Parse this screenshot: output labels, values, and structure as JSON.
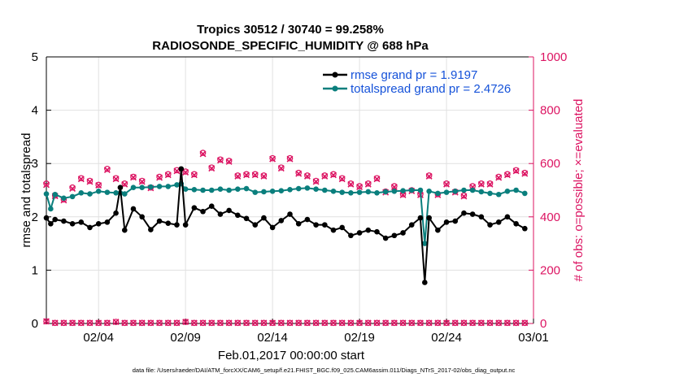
{
  "chart_data": {
    "type": "line",
    "title": "Tropics 30512 / 30740 = 99.258%",
    "subtitle": "RADIOSONDE_SPECIFIC_HUMIDITY @ 688 hPa",
    "xlabel": "Feb.01,2017 00:00:00 start",
    "ylabel_left": "rmse and totalspread",
    "ylabel_right": "# of obs: o=possible; ×=evaluated",
    "footnote": "data file: /Users/raeder/DAI/ATM_forcXX/CAM6_setup/f.e21.FHIST_BGC.f09_025.CAM6assim.011/Diags_NTrS_2017-02/obs_diag_output.nc",
    "x_start_day": 0,
    "xlim": [
      0,
      28
    ],
    "xticks": [
      3,
      8,
      13,
      18,
      23,
      28
    ],
    "xtick_labels": [
      "02/04",
      "02/09",
      "02/14",
      "02/19",
      "02/24",
      "03/01"
    ],
    "ylim_left": [
      0,
      5
    ],
    "yticks_left": [
      "0",
      "1",
      "2",
      "3",
      "4",
      "5"
    ],
    "ylim_right": [
      0,
      1000
    ],
    "yticks_right": [
      "0",
      "200",
      "400",
      "600",
      "800",
      "1000"
    ],
    "colors": {
      "rmse": "#000000",
      "spread": "#0a7f7d",
      "obs": "#dc1462",
      "legend_text": "#1552d9",
      "axis": "#000000"
    },
    "series": [
      {
        "name": "rmse grand pr = 1.9197",
        "axis": "left",
        "x": [
          0,
          0.25,
          0.5,
          1,
          1.5,
          2,
          2.5,
          3,
          3.5,
          4,
          4.25,
          4.5,
          5,
          5.5,
          6,
          6.5,
          7,
          7.5,
          7.75,
          8,
          8.5,
          9,
          9.5,
          10,
          10.5,
          11,
          11.5,
          12,
          12.5,
          13,
          13.5,
          14,
          14.5,
          15,
          15.5,
          16,
          16.5,
          17,
          17.5,
          18,
          18.5,
          19,
          19.5,
          20,
          20.5,
          21,
          21.5,
          21.75,
          22,
          22.5,
          23,
          23.5,
          24,
          24.5,
          25,
          25.5,
          26,
          26.5,
          27,
          27.5
        ],
        "values": [
          1.98,
          1.87,
          1.95,
          1.92,
          1.87,
          1.9,
          1.8,
          1.87,
          1.9,
          2.07,
          2.55,
          1.75,
          2.15,
          2.0,
          1.76,
          1.92,
          1.88,
          1.85,
          2.9,
          1.85,
          2.17,
          2.1,
          2.2,
          2.05,
          2.12,
          2.03,
          1.97,
          1.85,
          1.98,
          1.8,
          1.93,
          2.05,
          1.87,
          1.95,
          1.85,
          1.85,
          1.75,
          1.8,
          1.65,
          1.7,
          1.75,
          1.72,
          1.6,
          1.65,
          1.7,
          1.85,
          1.98,
          0.77,
          1.98,
          1.75,
          1.9,
          1.92,
          2.07,
          2.05,
          2.0,
          1.85,
          1.9,
          2.0,
          1.87,
          1.78
        ]
      },
      {
        "name": "totalspread grand pr = 2.4726",
        "axis": "left",
        "x": [
          0,
          0.25,
          0.5,
          1,
          1.5,
          2,
          2.5,
          3,
          3.5,
          4,
          4.25,
          4.5,
          5,
          5.5,
          6,
          6.5,
          7,
          7.5,
          7.75,
          8,
          8.5,
          9,
          9.5,
          10,
          10.5,
          11,
          11.5,
          12,
          12.5,
          13,
          13.5,
          14,
          14.5,
          15,
          15.5,
          16,
          16.5,
          17,
          17.5,
          18,
          18.5,
          19,
          19.5,
          20,
          20.5,
          21,
          21.5,
          21.75,
          22,
          22.5,
          23,
          23.5,
          24,
          24.5,
          25,
          25.5,
          26,
          26.5,
          27,
          27.5
        ],
        "values": [
          2.43,
          2.15,
          2.42,
          2.35,
          2.38,
          2.45,
          2.43,
          2.48,
          2.46,
          2.45,
          2.45,
          2.43,
          2.55,
          2.55,
          2.56,
          2.57,
          2.57,
          2.6,
          2.62,
          2.52,
          2.51,
          2.5,
          2.5,
          2.52,
          2.5,
          2.52,
          2.53,
          2.46,
          2.47,
          2.48,
          2.49,
          2.51,
          2.53,
          2.54,
          2.52,
          2.5,
          2.48,
          2.46,
          2.45,
          2.46,
          2.47,
          2.45,
          2.47,
          2.48,
          2.49,
          2.5,
          2.5,
          1.5,
          2.48,
          2.44,
          2.46,
          2.48,
          2.5,
          2.5,
          2.47,
          2.44,
          2.42,
          2.48,
          2.5,
          2.44
        ]
      },
      {
        "name": "obs possible",
        "axis": "right",
        "marker": "o",
        "x": [
          0,
          0.5,
          1,
          1.5,
          2,
          2.5,
          3,
          3.5,
          4,
          4.5,
          5,
          5.5,
          6,
          6.5,
          7,
          7.5,
          8,
          8.5,
          9,
          9.5,
          10,
          10.5,
          11,
          11.5,
          12,
          12.5,
          13,
          13.5,
          14,
          14.5,
          15,
          15.5,
          16,
          16.5,
          17,
          17.5,
          18,
          18.5,
          19,
          19.5,
          20,
          20.5,
          21,
          21.5,
          22,
          22.5,
          23,
          23.5,
          24,
          24.5,
          25,
          25.5,
          26,
          26.5,
          27,
          27.5
        ],
        "values": [
          525,
          480,
          465,
          510,
          545,
          535,
          520,
          580,
          545,
          525,
          550,
          535,
          510,
          550,
          560,
          575,
          570,
          560,
          640,
          585,
          615,
          610,
          555,
          560,
          560,
          555,
          620,
          585,
          620,
          565,
          555,
          535,
          555,
          560,
          545,
          525,
          515,
          525,
          545,
          495,
          515,
          485,
          500,
          485,
          555,
          485,
          525,
          495,
          480,
          515,
          525,
          525,
          550,
          560,
          575,
          565
        ]
      },
      {
        "name": "obs evaluated",
        "axis": "right",
        "marker": "x",
        "x": [
          0,
          0.5,
          1,
          1.5,
          2,
          2.5,
          3,
          3.5,
          4,
          4.5,
          5,
          5.5,
          6,
          6.5,
          7,
          7.5,
          8,
          8.5,
          9,
          9.5,
          10,
          10.5,
          11,
          11.5,
          12,
          12.5,
          13,
          13.5,
          14,
          14.5,
          15,
          15.5,
          16,
          16.5,
          17,
          17.5,
          18,
          18.5,
          19,
          19.5,
          20,
          20.5,
          21,
          21.5,
          22,
          22.5,
          23,
          23.5,
          24,
          24.5,
          25,
          25.5,
          26,
          26.5,
          27,
          27.5
        ],
        "values": [
          520,
          478,
          462,
          506,
          542,
          532,
          518,
          576,
          542,
          522,
          548,
          532,
          508,
          547,
          557,
          572,
          567,
          557,
          636,
          582,
          612,
          607,
          552,
          557,
          557,
          552,
          617,
          582,
          617,
          562,
          552,
          532,
          552,
          557,
          542,
          522,
          512,
          522,
          542,
          492,
          512,
          482,
          497,
          482,
          552,
          482,
          522,
          492,
          477,
          512,
          522,
          522,
          547,
          557,
          572,
          562
        ]
      },
      {
        "name": "obs baseline",
        "axis": "right",
        "marker": "x",
        "x": [
          0,
          0.5,
          1,
          1.5,
          2,
          2.5,
          3,
          3.5,
          4,
          4.5,
          5,
          5.5,
          6,
          6.5,
          7,
          7.5,
          8,
          8.5,
          9,
          9.5,
          10,
          10.5,
          11,
          11.5,
          12,
          12.5,
          13,
          13.5,
          14,
          14.5,
          15,
          15.5,
          16,
          16.5,
          17,
          17.5,
          18,
          18.5,
          19,
          19.5,
          20,
          20.5,
          21,
          21.5,
          22,
          22.5,
          23,
          23.5,
          24,
          24.5,
          25,
          25.5,
          26,
          26.5,
          27,
          27.5
        ],
        "values": [
          8,
          2,
          2,
          2,
          2,
          2,
          2,
          2,
          6,
          2,
          2,
          2,
          2,
          2,
          2,
          2,
          6,
          2,
          2,
          2,
          2,
          2,
          2,
          2,
          2,
          2,
          2,
          2,
          2,
          2,
          2,
          2,
          2,
          2,
          2,
          2,
          2,
          2,
          2,
          2,
          2,
          2,
          2,
          2,
          2,
          2,
          2,
          2,
          2,
          2,
          2,
          2,
          2,
          2,
          2,
          2
        ]
      }
    ],
    "legend": [
      "rmse grand pr = 1.9197",
      "totalspread grand pr = 2.4726"
    ]
  }
}
